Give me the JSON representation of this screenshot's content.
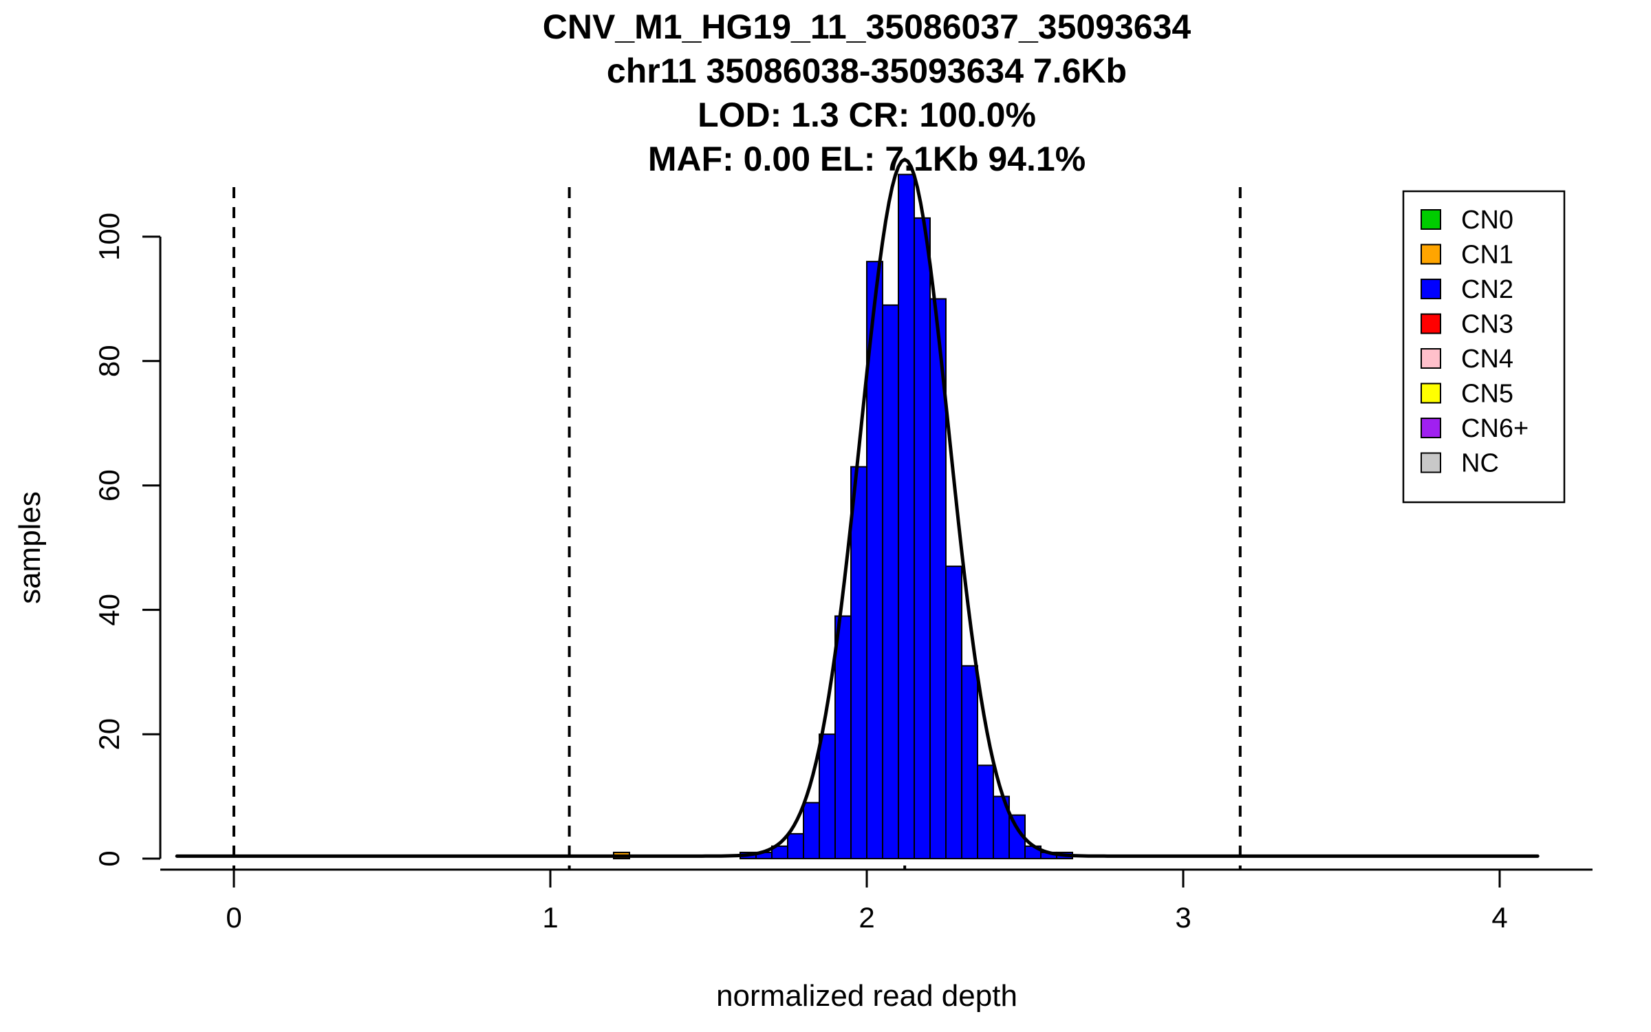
{
  "chart_data": {
    "type": "bar",
    "subtype": "histogram",
    "title_lines": [
      "CNV_M1_HG19_11_35086037_35093634",
      "chr11 35086038-35093634 7.6Kb",
      "LOD: 1.3 CR: 100.0%",
      "MAF: 0.00 EL: 7.1Kb 94.1%"
    ],
    "xlabel": "normalized read depth",
    "ylabel": "samples",
    "xlim": [
      -0.2,
      4.2
    ],
    "ylim": [
      0,
      110
    ],
    "x_ticks": [
      0,
      1,
      2,
      3,
      4
    ],
    "y_ticks": [
      0,
      20,
      40,
      60,
      80,
      100
    ],
    "grid": false,
    "bin_width": 0.05,
    "bars": [
      {
        "x": 1.2,
        "height": 1,
        "cn": "CN1",
        "color": "#FFA500"
      },
      {
        "x": 1.6,
        "height": 1,
        "cn": "CN2",
        "color": "#0000FF"
      },
      {
        "x": 1.65,
        "height": 1,
        "cn": "CN2",
        "color": "#0000FF"
      },
      {
        "x": 1.7,
        "height": 2,
        "cn": "CN2",
        "color": "#0000FF"
      },
      {
        "x": 1.75,
        "height": 4,
        "cn": "CN2",
        "color": "#0000FF"
      },
      {
        "x": 1.8,
        "height": 9,
        "cn": "CN2",
        "color": "#0000FF"
      },
      {
        "x": 1.85,
        "height": 20,
        "cn": "CN2",
        "color": "#0000FF"
      },
      {
        "x": 1.9,
        "height": 39,
        "cn": "CN2",
        "color": "#0000FF"
      },
      {
        "x": 1.95,
        "height": 63,
        "cn": "CN2",
        "color": "#0000FF"
      },
      {
        "x": 2.0,
        "height": 96,
        "cn": "CN2",
        "color": "#0000FF"
      },
      {
        "x": 2.05,
        "height": 89,
        "cn": "CN2",
        "color": "#0000FF"
      },
      {
        "x": 2.1,
        "height": 110,
        "cn": "CN2",
        "color": "#0000FF"
      },
      {
        "x": 2.15,
        "height": 103,
        "cn": "CN2",
        "color": "#0000FF"
      },
      {
        "x": 2.2,
        "height": 90,
        "cn": "CN2",
        "color": "#0000FF"
      },
      {
        "x": 2.25,
        "height": 47,
        "cn": "CN2",
        "color": "#0000FF"
      },
      {
        "x": 2.3,
        "height": 31,
        "cn": "CN2",
        "color": "#0000FF"
      },
      {
        "x": 2.35,
        "height": 15,
        "cn": "CN2",
        "color": "#0000FF"
      },
      {
        "x": 2.4,
        "height": 10,
        "cn": "CN2",
        "color": "#0000FF"
      },
      {
        "x": 2.45,
        "height": 7,
        "cn": "CN2",
        "color": "#0000FF"
      },
      {
        "x": 2.5,
        "height": 2,
        "cn": "CN2",
        "color": "#0000FF"
      },
      {
        "x": 2.55,
        "height": 1,
        "cn": "CN2",
        "color": "#0000FF"
      },
      {
        "x": 2.6,
        "height": 1,
        "cn": "CN2",
        "color": "#0000FF"
      }
    ],
    "dashed_lines_x": [
      0,
      1.06,
      2.12,
      3.18
    ],
    "density_curve": {
      "mean": 2.12,
      "sd": 0.14,
      "amplitude": 112,
      "baseline": 0.4,
      "x_start": -0.18,
      "x_end": 4.12
    },
    "legend": {
      "position": "top-right",
      "entries": [
        {
          "label": "CN0",
          "color": "#00CC00"
        },
        {
          "label": "CN1",
          "color": "#FFA500"
        },
        {
          "label": "CN2",
          "color": "#0000FF"
        },
        {
          "label": "CN3",
          "color": "#FF0000"
        },
        {
          "label": "CN4",
          "color": "#FFC0CB"
        },
        {
          "label": "CN5",
          "color": "#FFFF00"
        },
        {
          "label": "CN6+",
          "color": "#A020F0"
        },
        {
          "label": "NC",
          "color": "#C8C8C8"
        }
      ]
    },
    "colors": {
      "bar_stroke": "#000000",
      "curve": "#000000",
      "axis": "#000000",
      "background": "#FFFFFF"
    }
  }
}
